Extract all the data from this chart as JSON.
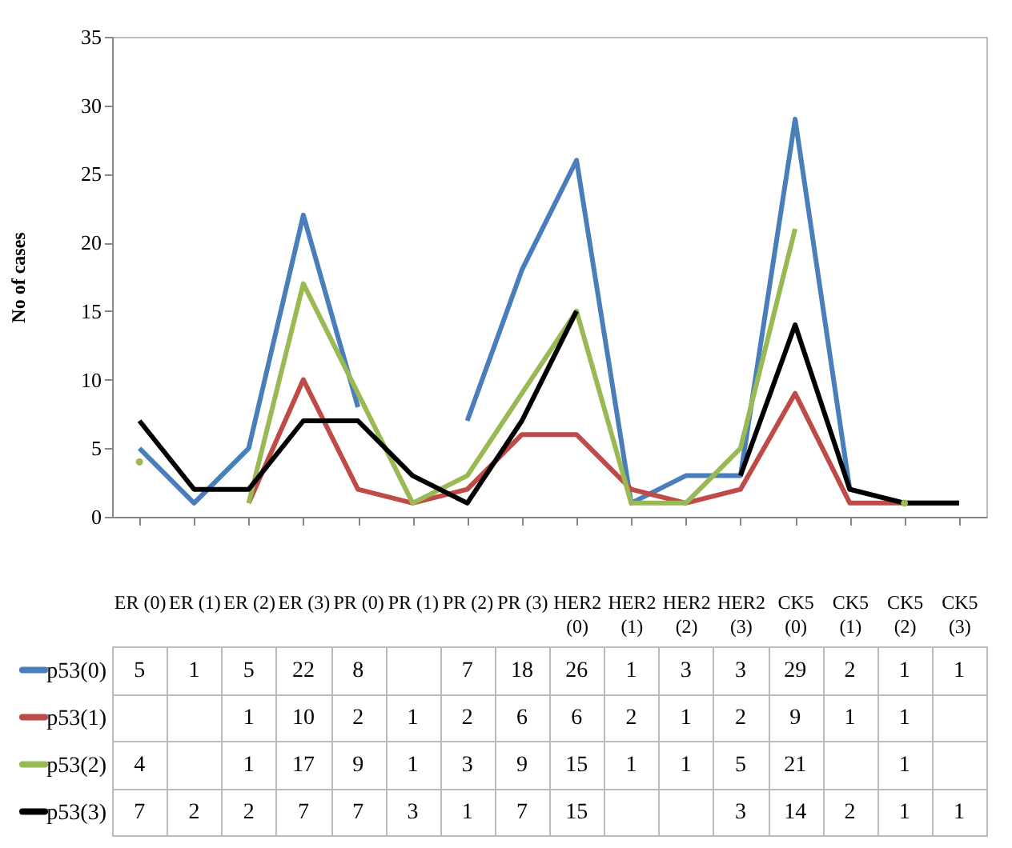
{
  "chart_data": {
    "type": "line",
    "ylabel": "No of cases",
    "categories": [
      "ER (0)",
      "ER (1)",
      "ER (2)",
      "ER (3)",
      "PR (0)",
      "PR (1)",
      "PR (2)",
      "PR (3)",
      "HER2 (0)",
      "HER2 (1)",
      "HER2 (2)",
      "HER2 (3)",
      "CK5 (0)",
      "CK5 (1)",
      "CK5 (2)",
      "CK5 (3)"
    ],
    "series": [
      {
        "name": "p53(0)",
        "color": "#4a7ebb",
        "values": [
          5,
          1,
          5,
          22,
          8,
          null,
          7,
          18,
          26,
          1,
          3,
          3,
          29,
          2,
          1,
          1
        ]
      },
      {
        "name": "p53(1)",
        "color": "#be4b48",
        "values": [
          null,
          null,
          1,
          10,
          2,
          1,
          2,
          6,
          6,
          2,
          1,
          2,
          9,
          1,
          1,
          null
        ]
      },
      {
        "name": "p53(2)",
        "color": "#98b954",
        "values": [
          4,
          null,
          1,
          17,
          9,
          1,
          3,
          9,
          15,
          1,
          1,
          5,
          21,
          null,
          1,
          null
        ]
      },
      {
        "name": "p53(3)",
        "color": "#000000",
        "values": [
          7,
          2,
          2,
          7,
          7,
          3,
          1,
          7,
          15,
          null,
          null,
          3,
          14,
          2,
          1,
          1
        ]
      }
    ],
    "legend": "bottom",
    "ylim": [
      0,
      35
    ],
    "yticks": [
      0,
      5,
      10,
      15,
      20,
      25,
      30,
      35
    ],
    "data_labels": true
  }
}
